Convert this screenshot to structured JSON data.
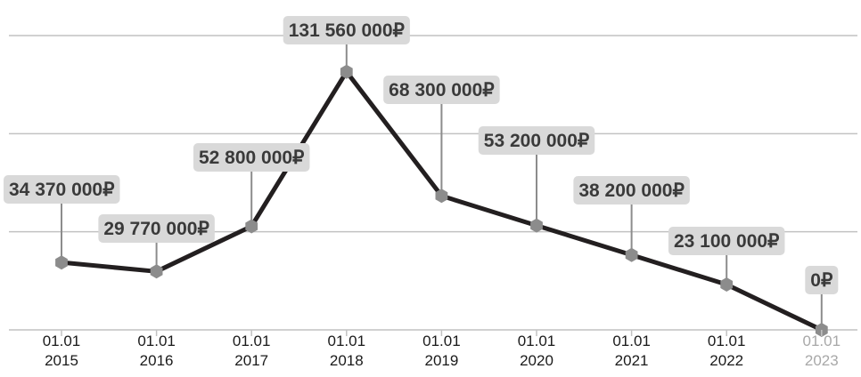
{
  "chart_data": {
    "type": "line",
    "title": "",
    "xlabel": "",
    "ylabel": "",
    "x": [
      "01.01 2015",
      "01.01 2016",
      "01.01 2017",
      "01.01 2018",
      "01.01 2019",
      "01.01 2020",
      "01.01 2021",
      "01.01 2022",
      "01.01 2023"
    ],
    "x_tick_lines": [
      [
        "01.01",
        "2015"
      ],
      [
        "01.01",
        "2016"
      ],
      [
        "01.01",
        "2017"
      ],
      [
        "01.01",
        "2018"
      ],
      [
        "01.01",
        "2019"
      ],
      [
        "01.01",
        "2020"
      ],
      [
        "01.01",
        "2021"
      ],
      [
        "01.01",
        "2022"
      ],
      [
        "01.01",
        "2023"
      ]
    ],
    "values": [
      34370000,
      29770000,
      52800000,
      131560000,
      68300000,
      53200000,
      38200000,
      23100000,
      0
    ],
    "data_labels": [
      "34 370 000₽",
      "29 770 000₽",
      "52 800 000₽",
      "131 560 000₽",
      "68 300 000₽",
      "53 200 000₽",
      "38 200 000₽",
      "23 100 000₽",
      "0₽"
    ],
    "ylim": [
      0,
      150000000
    ],
    "grid": true,
    "colors": {
      "line": "#231f20",
      "marker": "#8c8c8c",
      "label_bg": "#d9d9d9",
      "label_text": "#3a3a3a",
      "grid": "#c2c2c2",
      "tick_text": "#1a1a1a",
      "tick_text_muted": "#a8a8a8"
    }
  }
}
